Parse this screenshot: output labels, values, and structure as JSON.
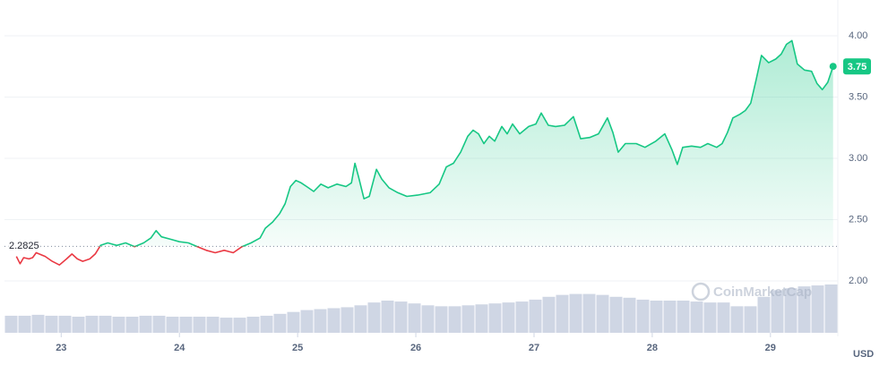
{
  "chart_data": {
    "type": "line",
    "x": [
      22.621,
      22.652,
      22.682,
      22.727,
      22.758,
      22.788,
      22.864,
      22.924,
      22.985,
      23.045,
      23.091,
      23.136,
      23.182,
      23.242,
      23.288,
      23.333,
      23.394,
      23.47,
      23.545,
      23.621,
      23.697,
      23.758,
      23.803,
      23.848,
      23.924,
      24.0,
      24.076,
      24.152,
      24.227,
      24.303,
      24.379,
      24.455,
      24.53,
      24.606,
      24.682,
      24.727,
      24.788,
      24.848,
      24.894,
      24.939,
      24.985,
      25.03,
      25.076,
      25.136,
      25.197,
      25.258,
      25.333,
      25.409,
      25.455,
      25.485,
      25.515,
      25.561,
      25.606,
      25.667,
      25.712,
      25.773,
      25.848,
      25.924,
      26.015,
      26.121,
      26.197,
      26.258,
      26.318,
      26.379,
      26.439,
      26.485,
      26.53,
      26.576,
      26.621,
      26.667,
      26.727,
      26.773,
      26.818,
      26.879,
      26.955,
      27.015,
      27.061,
      27.121,
      27.182,
      27.258,
      27.333,
      27.394,
      27.47,
      27.545,
      27.621,
      27.667,
      27.712,
      27.773,
      27.864,
      27.939,
      28.03,
      28.106,
      28.167,
      28.212,
      28.258,
      28.333,
      28.409,
      28.47,
      28.545,
      28.591,
      28.636,
      28.682,
      28.742,
      28.788,
      28.833,
      28.879,
      28.924,
      28.985,
      29.045,
      29.091,
      29.136,
      29.182,
      29.227,
      29.288,
      29.348,
      29.394,
      29.439,
      29.485,
      29.53
    ],
    "series": [
      {
        "color": "#16c784",
        "values": [
          2.2,
          2.14,
          2.19,
          2.18,
          2.19,
          2.23,
          2.2,
          2.16,
          2.13,
          2.18,
          2.22,
          2.18,
          2.16,
          2.18,
          2.22,
          2.29,
          2.31,
          2.29,
          2.31,
          2.28,
          2.31,
          2.35,
          2.41,
          2.36,
          2.34,
          2.32,
          2.31,
          2.28,
          2.25,
          2.23,
          2.25,
          2.23,
          2.28,
          2.31,
          2.35,
          2.43,
          2.48,
          2.55,
          2.63,
          2.77,
          2.82,
          2.8,
          2.77,
          2.73,
          2.79,
          2.76,
          2.79,
          2.77,
          2.8,
          2.96,
          2.85,
          2.67,
          2.69,
          2.91,
          2.83,
          2.76,
          2.72,
          2.69,
          2.7,
          2.72,
          2.79,
          2.93,
          2.96,
          3.05,
          3.18,
          3.23,
          3.2,
          3.12,
          3.18,
          3.14,
          3.26,
          3.2,
          3.28,
          3.2,
          3.26,
          3.28,
          3.37,
          3.27,
          3.26,
          3.27,
          3.34,
          3.16,
          3.17,
          3.2,
          3.33,
          3.21,
          3.05,
          3.12,
          3.12,
          3.09,
          3.14,
          3.2,
          3.07,
          2.95,
          3.09,
          3.1,
          3.09,
          3.12,
          3.09,
          3.12,
          3.21,
          3.33,
          3.36,
          3.39,
          3.45,
          3.64,
          3.84,
          3.78,
          3.81,
          3.85,
          3.93,
          3.96,
          3.77,
          3.72,
          3.71,
          3.61,
          3.56,
          3.62,
          3.75
        ]
      }
    ],
    "down_color": "#ea3943",
    "baseline": 2.2825,
    "volume": {
      "color": "#cfd6e4",
      "values": [
        18,
        18,
        19,
        18,
        18,
        17,
        18,
        18,
        17,
        17,
        18,
        18,
        17,
        17,
        17,
        17,
        16,
        16,
        17,
        18,
        20,
        22,
        24,
        25,
        26,
        27,
        29,
        32,
        34,
        33,
        31,
        29,
        28,
        28,
        29,
        30,
        31,
        32,
        33,
        35,
        38,
        40,
        41,
        41,
        40,
        38,
        37,
        35,
        34,
        34,
        34,
        33,
        32,
        32,
        28,
        28,
        38,
        45,
        47,
        49,
        50,
        51
      ]
    },
    "xlim": [
      22.52,
      29.57
    ],
    "xticks": [
      23,
      24,
      25,
      26,
      27,
      28,
      29
    ],
    "ylim": [
      1.577,
      4.255
    ],
    "yticks": [
      {
        "value": 2,
        "label": "2.00"
      },
      {
        "value": 2.5,
        "label": "2.50"
      },
      {
        "value": 3,
        "label": "3.00"
      },
      {
        "value": 3.5,
        "label": "3.50"
      },
      {
        "value": 4,
        "label": "4.00"
      }
    ],
    "y_unit": "USD",
    "watermark": "CoinMarketCap",
    "grid": true
  }
}
